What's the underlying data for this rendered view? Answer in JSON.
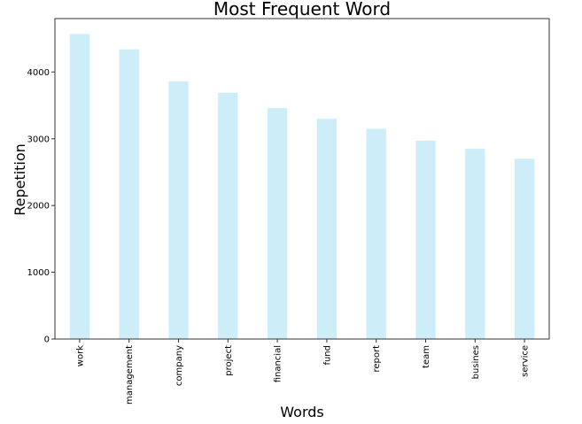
{
  "chart_data": {
    "type": "bar",
    "title": "Most Frequent Word",
    "xlabel": "Words",
    "ylabel": "Repetition",
    "categories": [
      "work",
      "management",
      "company",
      "project",
      "financial",
      "fund",
      "report",
      "team",
      "busines",
      "service"
    ],
    "values": [
      4570,
      4340,
      3860,
      3690,
      3460,
      3300,
      3150,
      2970,
      2850,
      2700
    ],
    "yticks": [
      0,
      1000,
      2000,
      3000,
      4000
    ],
    "ylim": [
      0,
      4800
    ],
    "grid": false,
    "bar_color": "#cdeef9",
    "axis_color": "#333333"
  }
}
